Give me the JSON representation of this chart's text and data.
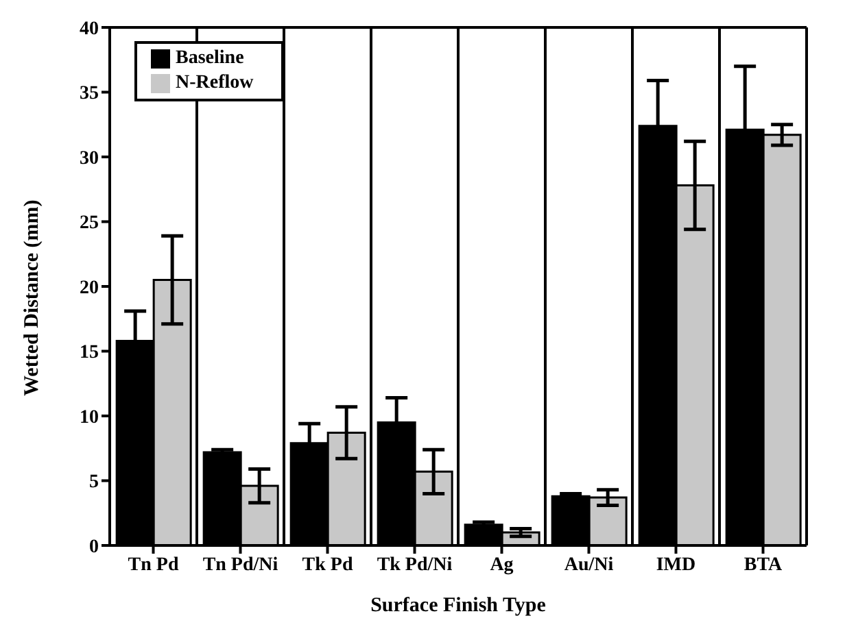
{
  "chart_data": {
    "type": "bar",
    "xlabel": "Surface Finish Type",
    "ylabel": "Wetted Distance (mm)",
    "categories": [
      "Tn Pd",
      "Tn Pd/Ni",
      "Tk Pd",
      "Tk Pd/Ni",
      "Ag",
      "Au/Ni",
      "IMD",
      "BTA"
    ],
    "series": [
      {
        "name": "Baseline",
        "color": "#000000",
        "values": [
          15.8,
          7.2,
          7.9,
          9.5,
          1.6,
          3.8,
          32.4,
          32.1
        ],
        "errors": [
          2.3,
          0.2,
          1.5,
          1.9,
          0.2,
          0.2,
          3.5,
          4.9
        ]
      },
      {
        "name": "N-Reflow",
        "color": "#c8c8c8",
        "values": [
          20.5,
          4.6,
          8.7,
          5.7,
          1.0,
          3.7,
          27.8,
          31.7
        ],
        "errors": [
          3.4,
          1.3,
          2.0,
          1.7,
          0.3,
          0.6,
          3.4,
          0.8
        ]
      }
    ],
    "ylim": [
      0,
      40
    ],
    "yticks": [
      0,
      5,
      10,
      15,
      20,
      25,
      30,
      35,
      40
    ],
    "grid": "x",
    "legend": "top left"
  }
}
